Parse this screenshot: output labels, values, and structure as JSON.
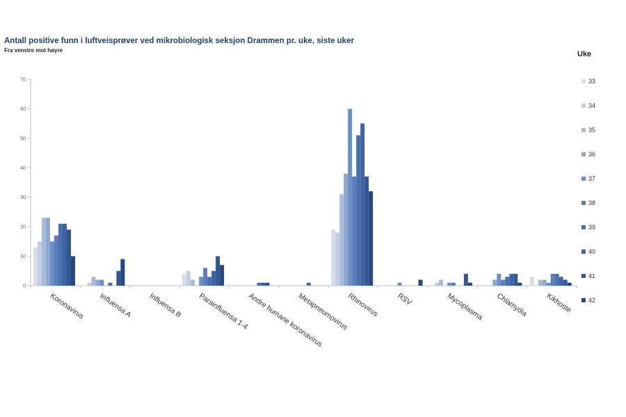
{
  "chart_data": {
    "type": "bar",
    "title": "Antall positive funn i luftveisprøver ved mikrobiologisk seksjon Drammen pr. uke, siste uker",
    "subtitle": "Fra venstre mot høyre",
    "legend_title": "Uke",
    "legend_position": "right",
    "ylim": [
      0,
      70
    ],
    "yticks": [
      0,
      10,
      20,
      30,
      40,
      50,
      60,
      70
    ],
    "grid": false,
    "categories": [
      "Koronavirus",
      "Influensa A",
      "Influensa B",
      "Parainfluensa 1-4",
      "Andre humane koronavirus",
      "Metapneumovirus",
      "Rhinovirus",
      "RSV",
      "Mycoplasma",
      "Chlamydia",
      "Kikhoste"
    ],
    "series": [
      {
        "name": "33",
        "color": "#d6dcea",
        "values": [
          13,
          0,
          0,
          4,
          0,
          0,
          19,
          0,
          0,
          0,
          3
        ]
      },
      {
        "name": "34",
        "color": "#c3cee3",
        "values": [
          15,
          1,
          0,
          5,
          0,
          0,
          18,
          0,
          1,
          0,
          0
        ]
      },
      {
        "name": "35",
        "color": "#a9bbd8",
        "values": [
          23,
          3,
          0,
          2,
          0,
          0,
          31,
          0,
          2,
          0,
          2
        ]
      },
      {
        "name": "36",
        "color": "#8ea8cf",
        "values": [
          23,
          2,
          0,
          0,
          0,
          0,
          38,
          0,
          0,
          2,
          2
        ]
      },
      {
        "name": "37",
        "color": "#6e8fc4",
        "values": [
          15,
          2,
          0,
          3,
          0,
          0,
          60,
          1,
          1,
          4,
          1
        ]
      },
      {
        "name": "38",
        "color": "#5b7fbb",
        "values": [
          17,
          0,
          0,
          6,
          0,
          0,
          37,
          0,
          1,
          2,
          4
        ]
      },
      {
        "name": "39",
        "color": "#4a70ae",
        "values": [
          21,
          1,
          0,
          3,
          1,
          1,
          51,
          0,
          0,
          3,
          4
        ]
      },
      {
        "name": "40",
        "color": "#3d64a3",
        "values": [
          21,
          0,
          0,
          5,
          1,
          0,
          55,
          0,
          0,
          4,
          3
        ]
      },
      {
        "name": "41",
        "color": "#325792",
        "values": [
          19,
          5,
          0,
          10,
          1,
          0,
          37,
          0,
          4,
          4,
          2
        ]
      },
      {
        "name": "42",
        "color": "#26477f",
        "values": [
          10,
          9,
          0,
          7,
          0,
          0,
          32,
          2,
          1,
          1,
          1
        ]
      }
    ]
  }
}
